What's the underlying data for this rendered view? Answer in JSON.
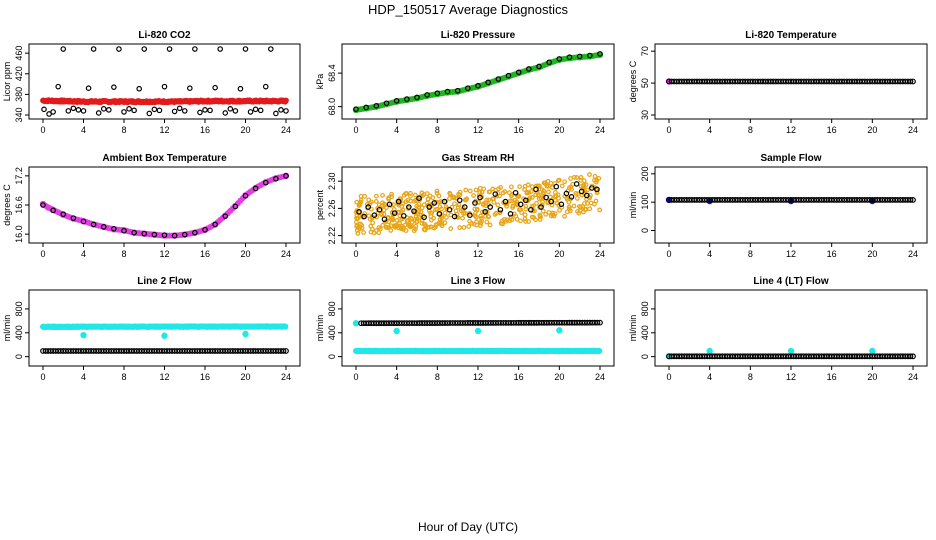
{
  "figure": {
    "title": "HDP_150517  Average Diagnostics",
    "xlabel": "Hour of Day (UTC)"
  },
  "chart_data": [
    {
      "type": "scatter",
      "title": "Li-820 CO2",
      "ylabel": "Licor ppm",
      "xlim": [
        0,
        24
      ],
      "ylim": [
        340,
        470
      ],
      "xticks": [
        "0",
        "4",
        "8",
        "12",
        "16",
        "20",
        "24"
      ],
      "yticks": [
        "340",
        "380",
        "420",
        "460"
      ],
      "series": [
        {
          "color": "#000000",
          "style": "open",
          "x": [
            0.1,
            0.6,
            1,
            1.5,
            2,
            2.5,
            3,
            3.5,
            4,
            4.5,
            5,
            5.5,
            6,
            6.5,
            7,
            7.5,
            8,
            8.5,
            9,
            9.5,
            10,
            10.5,
            11,
            11.5,
            12,
            12.5,
            13,
            13.5,
            14,
            14.5,
            15,
            15.5,
            16,
            16.5,
            17,
            17.5,
            18,
            18.5,
            19,
            19.5,
            20,
            20.5,
            21,
            21.5,
            22,
            22.5,
            23,
            23.5,
            24
          ],
          "y": [
            351,
            342,
            346,
            395,
            468,
            348,
            353,
            350,
            348,
            392,
            468,
            344,
            352,
            350,
            394,
            468,
            346,
            352,
            349,
            391,
            468,
            343,
            351,
            349,
            395,
            468,
            347,
            353,
            348,
            392,
            468,
            345,
            350,
            349,
            393,
            468,
            344,
            352,
            348,
            391,
            468,
            346,
            351,
            349,
            395,
            468,
            343,
            350,
            348
          ]
        },
        {
          "color": "#e31a1c",
          "style": "filled-band",
          "x": [
            0,
            2,
            4,
            6,
            8,
            10,
            12,
            14,
            16,
            18,
            20,
            22,
            24
          ],
          "y": [
            368,
            367,
            366,
            366,
            366,
            366,
            366,
            366,
            367,
            367,
            367,
            367,
            367
          ]
        }
      ]
    },
    {
      "type": "scatter",
      "title": "Li-820 Pressure",
      "ylabel": "kPa",
      "xlim": [
        0,
        24
      ],
      "ylim": [
        67.9,
        68.7
      ],
      "xticks": [
        "0",
        "4",
        "8",
        "12",
        "16",
        "20",
        "24"
      ],
      "yticks": [
        "68.0",
        "68.4"
      ],
      "series": [
        {
          "color": "#22b422",
          "style": "filled",
          "x": [
            0,
            1,
            2,
            3,
            4,
            5,
            6,
            7,
            8,
            9,
            10,
            11,
            12,
            13,
            14,
            15,
            16,
            17,
            18,
            19,
            20,
            21,
            22,
            23,
            24
          ],
          "y": [
            67.96,
            67.98,
            68.0,
            68.03,
            68.06,
            68.08,
            68.1,
            68.13,
            68.15,
            68.17,
            68.18,
            68.21,
            68.24,
            68.28,
            68.32,
            68.36,
            68.4,
            68.44,
            68.47,
            68.52,
            68.56,
            68.58,
            68.59,
            68.6,
            68.62
          ]
        },
        {
          "color": "#000000",
          "style": "open",
          "x": [
            0,
            1,
            2,
            3,
            4,
            5,
            6,
            7,
            8,
            9,
            10,
            11,
            12,
            13,
            14,
            15,
            16,
            17,
            18,
            19,
            20,
            21,
            22,
            23,
            24
          ],
          "y": [
            67.97,
            67.99,
            68.01,
            68.04,
            68.07,
            68.09,
            68.11,
            68.14,
            68.16,
            68.18,
            68.19,
            68.22,
            68.25,
            68.29,
            68.33,
            68.37,
            68.41,
            68.45,
            68.48,
            68.53,
            68.57,
            68.59,
            68.6,
            68.61,
            68.63
          ]
        }
      ]
    },
    {
      "type": "scatter",
      "title": "Li-820 Temperature",
      "ylabel": "degrees C",
      "xlim": [
        0,
        24
      ],
      "ylim": [
        30,
        72
      ],
      "xticks": [
        "0",
        "4",
        "8",
        "12",
        "16",
        "20",
        "24"
      ],
      "yticks": [
        "30",
        "50",
        "70"
      ],
      "series": [
        {
          "color": "#e040e0",
          "style": "filled",
          "x": [
            0
          ],
          "y": [
            51
          ]
        },
        {
          "color": "#000000",
          "style": "open",
          "dense": true,
          "x": [
            0,
            24
          ],
          "y": [
            51,
            51
          ]
        }
      ]
    },
    {
      "type": "scatter",
      "title": "Ambient Box Temperature",
      "ylabel": "degrees C",
      "xlim": [
        0,
        24
      ],
      "ylim": [
        15.9,
        17.3
      ],
      "xticks": [
        "0",
        "4",
        "8",
        "12",
        "16",
        "20",
        "24"
      ],
      "yticks": [
        "16.0",
        "16.6",
        "17.2"
      ],
      "series": [
        {
          "color": "#e040e0",
          "style": "filled",
          "x": [
            0,
            0.5,
            1,
            2,
            3,
            4,
            5,
            6,
            7,
            8,
            9,
            10,
            11,
            12,
            13,
            14,
            15,
            16,
            17,
            18,
            19,
            20,
            21,
            22,
            23,
            24
          ],
          "y": [
            16.62,
            16.55,
            16.5,
            16.4,
            16.32,
            16.27,
            16.2,
            16.15,
            16.1,
            16.08,
            16.03,
            16.01,
            15.99,
            15.97,
            15.97,
            15.99,
            16.03,
            16.09,
            16.2,
            16.38,
            16.58,
            16.8,
            16.95,
            17.07,
            17.15,
            17.2
          ]
        },
        {
          "color": "#000000",
          "style": "open",
          "x": [
            0,
            1,
            2,
            3,
            4,
            5,
            6,
            7,
            8,
            9,
            10,
            11,
            12,
            13,
            14,
            15,
            16,
            17,
            18,
            19,
            20,
            21,
            22,
            23,
            24
          ],
          "y": [
            16.6,
            16.49,
            16.41,
            16.33,
            16.26,
            16.2,
            16.15,
            16.11,
            16.07,
            16.03,
            16.01,
            15.99,
            15.98,
            15.97,
            15.99,
            16.03,
            16.09,
            16.2,
            16.37,
            16.57,
            16.79,
            16.94,
            17.06,
            17.14,
            17.2
          ]
        }
      ]
    },
    {
      "type": "scatter",
      "title": "Gas Stream RH",
      "ylabel": "percent",
      "xlim": [
        0,
        24
      ],
      "ylim": [
        2.215,
        2.315
      ],
      "xticks": [
        "0",
        "4",
        "8",
        "12",
        "16",
        "20",
        "24"
      ],
      "yticks": [
        "2.22",
        "2.26",
        "2.30"
      ],
      "series": [
        {
          "color": "#e8a516",
          "style": "open-dense",
          "x": [
            0,
            2,
            4,
            6,
            8,
            10,
            12,
            14,
            16,
            18,
            20,
            22,
            24
          ],
          "y": [
            2.25,
            2.252,
            2.255,
            2.255,
            2.258,
            2.258,
            2.262,
            2.263,
            2.266,
            2.27,
            2.275,
            2.28,
            2.285
          ],
          "spread": 0.028
        },
        {
          "color": "#000000",
          "style": "open",
          "x": [
            0.3,
            0.8,
            1.2,
            1.8,
            2.3,
            2.8,
            3.3,
            3.8,
            4.2,
            4.7,
            5.2,
            5.7,
            6.2,
            6.7,
            7.2,
            7.7,
            8.2,
            8.7,
            9.2,
            9.7,
            10.2,
            10.7,
            11.2,
            11.7,
            12.2,
            12.7,
            13.2,
            13.7,
            14.2,
            14.7,
            15.2,
            15.7,
            16.2,
            16.7,
            17.2,
            17.7,
            18.2,
            18.7,
            19.2,
            19.7,
            20.2,
            20.7,
            21.2,
            21.7,
            22.2,
            22.7,
            23.2,
            23.7
          ],
          "y": [
            2.255,
            2.248,
            2.262,
            2.25,
            2.258,
            2.244,
            2.266,
            2.253,
            2.27,
            2.249,
            2.262,
            2.256,
            2.275,
            2.247,
            2.262,
            2.268,
            2.252,
            2.27,
            2.258,
            2.248,
            2.272,
            2.262,
            2.25,
            2.268,
            2.276,
            2.255,
            2.262,
            2.281,
            2.258,
            2.27,
            2.252,
            2.283,
            2.266,
            2.272,
            2.258,
            2.288,
            2.262,
            2.276,
            2.27,
            2.292,
            2.266,
            2.282,
            2.277,
            2.296,
            2.285,
            2.279,
            2.29,
            2.288
          ]
        }
      ]
    },
    {
      "type": "scatter",
      "title": "Sample Flow",
      "ylabel": "ml/min",
      "xlim": [
        0,
        24
      ],
      "ylim": [
        -30,
        210
      ],
      "xticks": [
        "0",
        "4",
        "8",
        "12",
        "16",
        "20",
        "24"
      ],
      "yticks": [
        "0",
        "100",
        "200"
      ],
      "series": [
        {
          "color": "#1010e0",
          "style": "filled",
          "x": [
            0,
            4,
            12,
            20
          ],
          "y": [
            108,
            104,
            104,
            104
          ]
        },
        {
          "color": "#000000",
          "style": "open",
          "dense": true,
          "x": [
            0,
            24
          ],
          "y": [
            108,
            108
          ]
        }
      ]
    },
    {
      "type": "scatter",
      "title": "Line 2 Flow",
      "ylabel": "ml/min",
      "xlim": [
        0,
        24
      ],
      "ylim": [
        -90,
        1050
      ],
      "xticks": [
        "0",
        "4",
        "8",
        "12",
        "16",
        "20",
        "24"
      ],
      "yticks": [
        "0",
        "400",
        "800"
      ],
      "series": [
        {
          "color": "#20e8e8",
          "style": "filled-dense",
          "x": [
            0,
            24
          ],
          "y": [
            500,
            505
          ],
          "outliers": {
            "x": [
              4,
              12,
              20
            ],
            "y": [
              360,
              350,
              380
            ]
          }
        },
        {
          "color": "#000000",
          "style": "open",
          "dense": true,
          "x": [
            0,
            24
          ],
          "y": [
            95,
            95
          ]
        }
      ]
    },
    {
      "type": "scatter",
      "title": "Line 3 Flow",
      "ylabel": "ml/min",
      "xlim": [
        0,
        24
      ],
      "ylim": [
        -90,
        1050
      ],
      "xticks": [
        "0",
        "4",
        "8",
        "12",
        "16",
        "20",
        "24"
      ],
      "yticks": [
        "0",
        "400",
        "800"
      ],
      "series": [
        {
          "color": "#20e8e8",
          "style": "filled-dense",
          "x": [
            0,
            24
          ],
          "y": [
            95,
            95
          ],
          "outliers": {
            "x": [
              0,
              4,
              12,
              20
            ],
            "y": [
              560,
              430,
              430,
              440
            ]
          }
        },
        {
          "color": "#000000",
          "style": "open",
          "dense": true,
          "x": [
            0.5,
            24
          ],
          "y": [
            560,
            570
          ]
        }
      ]
    },
    {
      "type": "scatter",
      "title": "Line 4 (LT) Flow",
      "ylabel": "ml/min",
      "xlim": [
        0,
        24
      ],
      "ylim": [
        -90,
        1050
      ],
      "xticks": [
        "0",
        "4",
        "8",
        "12",
        "16",
        "20",
        "24"
      ],
      "yticks": [
        "0",
        "400",
        "800"
      ],
      "series": [
        {
          "color": "#20e8e8",
          "style": "filled",
          "x": [
            0,
            4,
            12,
            20
          ],
          "y": [
            5,
            95,
            95,
            95
          ]
        },
        {
          "color": "#000000",
          "style": "open",
          "dense": true,
          "x": [
            0,
            24
          ],
          "y": [
            5,
            5
          ]
        }
      ]
    }
  ]
}
